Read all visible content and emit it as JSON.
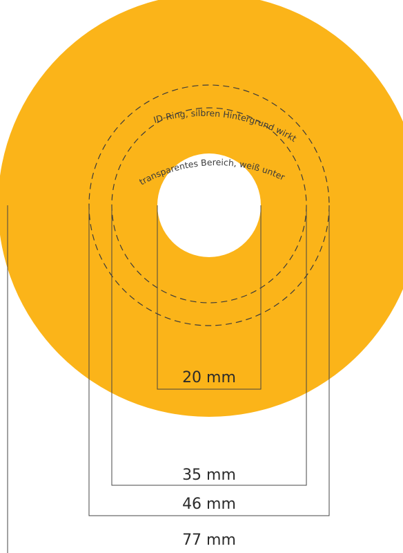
{
  "colors": {
    "disc": "#FBB419",
    "hole": "#FFFFFF",
    "lines": "#444444",
    "text": "#2B2B2B"
  },
  "ring_labels": {
    "outer": "ID-Ring, silbren Hintergrund wirkt anders!",
    "inner": "transparentes Bereich, weiß unterdrucken!"
  },
  "dimensions": [
    {
      "key": "d20",
      "label": "20 mm",
      "diameter_mm": 20
    },
    {
      "key": "d35",
      "label": "35 mm",
      "diameter_mm": 35
    },
    {
      "key": "d46",
      "label": "46 mm",
      "diameter_mm": 46
    },
    {
      "key": "d77",
      "label": "77 mm",
      "diameter_mm": 77
    }
  ]
}
